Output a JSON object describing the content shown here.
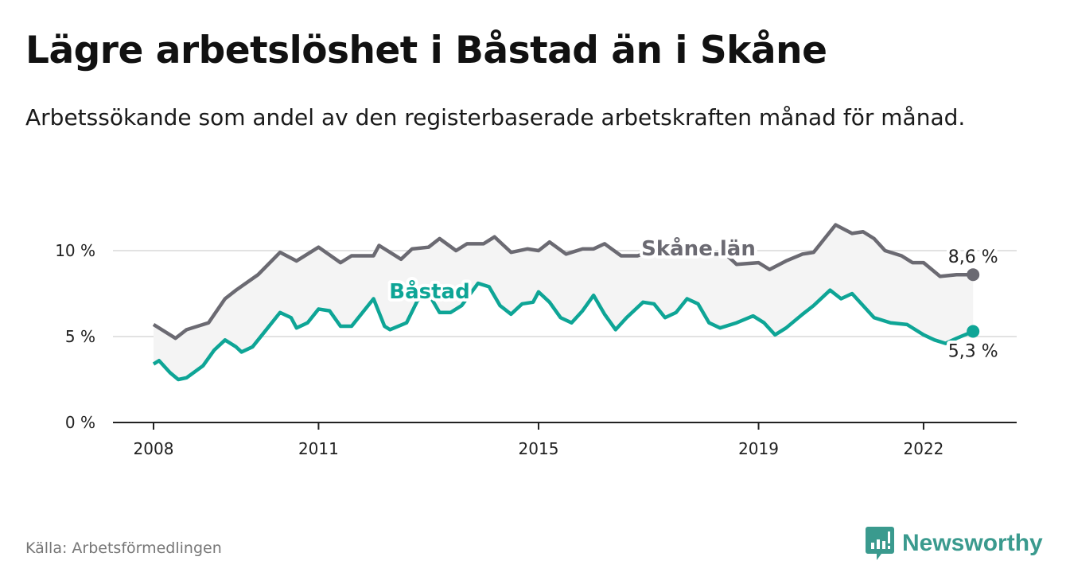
{
  "title": "Lägre arbetslöshet i Båstad än i Skåne",
  "subtitle": "Arbetssökande som andel av den registerbaserade arbetskraften månad för månad.",
  "source": "Källa: Arbetsförmedlingen",
  "logo": "Newsworthy",
  "colors": {
    "skane": "#6b6a72",
    "bastad": "#0ea596",
    "band": "#f4f4f4",
    "logo": "#3a9a8e"
  },
  "chart_data": {
    "type": "line",
    "xlabel": "",
    "ylabel": "",
    "xlim": [
      2008,
      2022.95
    ],
    "ylim": [
      0,
      12
    ],
    "grid": true,
    "x_ticks": [
      {
        "value": 2008,
        "label": "2008"
      },
      {
        "value": 2011,
        "label": "2011"
      },
      {
        "value": 2015,
        "label": "2015"
      },
      {
        "value": 2019,
        "label": "2019"
      },
      {
        "value": 2022,
        "label": "2022"
      }
    ],
    "y_ticks": [
      {
        "value": 0,
        "label": "0 %"
      },
      {
        "value": 5,
        "label": "5 %"
      },
      {
        "value": 10,
        "label": "10 %"
      }
    ],
    "series": [
      {
        "name": "Skåne län",
        "end_label": "8,6 %",
        "x": [
          2008.0,
          2008.4,
          2008.6,
          2009.0,
          2009.3,
          2009.5,
          2009.9,
          2010.3,
          2010.6,
          2010.8,
          2011.0,
          2011.4,
          2011.6,
          2012.0,
          2012.1,
          2012.5,
          2012.7,
          2013.0,
          2013.2,
          2013.5,
          2013.7,
          2014.0,
          2014.2,
          2014.5,
          2014.8,
          2015.0,
          2015.2,
          2015.5,
          2015.8,
          2016.0,
          2016.2,
          2016.5,
          2016.8,
          2017.0,
          2017.5,
          2018.0,
          2018.4,
          2018.6,
          2019.0,
          2019.2,
          2019.5,
          2019.8,
          2020.0,
          2020.2,
          2020.4,
          2020.7,
          2020.9,
          2021.1,
          2021.3,
          2021.6,
          2021.8,
          2022.0,
          2022.3,
          2022.6,
          2022.9
        ],
        "values": [
          5.7,
          4.9,
          5.4,
          5.8,
          7.2,
          7.7,
          8.6,
          9.9,
          9.4,
          9.8,
          10.2,
          9.3,
          9.7,
          9.7,
          10.3,
          9.5,
          10.1,
          10.2,
          10.7,
          10.0,
          10.4,
          10.4,
          10.8,
          9.9,
          10.1,
          10.0,
          10.5,
          9.8,
          10.1,
          10.1,
          10.4,
          9.7,
          9.7,
          9.9,
          9.9,
          9.8,
          9.8,
          9.2,
          9.3,
          8.9,
          9.4,
          9.8,
          9.9,
          10.7,
          11.5,
          11.0,
          11.1,
          10.7,
          10.0,
          9.7,
          9.3,
          9.3,
          8.5,
          8.6,
          8.6
        ]
      },
      {
        "name": "Båstad",
        "end_label": "5,3 %",
        "x": [
          2008.0,
          2008.1,
          2008.3,
          2008.45,
          2008.6,
          2008.9,
          2009.1,
          2009.3,
          2009.5,
          2009.6,
          2009.8,
          2010.1,
          2010.3,
          2010.5,
          2010.6,
          2010.8,
          2011.0,
          2011.2,
          2011.4,
          2011.6,
          2011.9,
          2012.0,
          2012.2,
          2012.3,
          2012.6,
          2012.8,
          2013.0,
          2013.2,
          2013.4,
          2013.6,
          2013.9,
          2014.1,
          2014.3,
          2014.5,
          2014.7,
          2014.9,
          2015.0,
          2015.2,
          2015.4,
          2015.6,
          2015.8,
          2016.0,
          2016.2,
          2016.4,
          2016.6,
          2016.9,
          2017.1,
          2017.3,
          2017.5,
          2017.7,
          2017.9,
          2018.1,
          2018.3,
          2018.6,
          2018.9,
          2019.1,
          2019.3,
          2019.5,
          2019.8,
          2020.0,
          2020.3,
          2020.5,
          2020.7,
          2020.9,
          2021.1,
          2021.4,
          2021.7,
          2022.0,
          2022.2,
          2022.4,
          2022.6,
          2022.9
        ],
        "values": [
          3.4,
          3.6,
          2.9,
          2.5,
          2.6,
          3.3,
          4.2,
          4.8,
          4.4,
          4.1,
          4.4,
          5.6,
          6.4,
          6.1,
          5.5,
          5.8,
          6.6,
          6.5,
          5.6,
          5.6,
          6.8,
          7.2,
          5.6,
          5.4,
          5.8,
          7.1,
          7.5,
          6.4,
          6.4,
          6.8,
          8.1,
          7.9,
          6.8,
          6.3,
          6.9,
          7.0,
          7.6,
          7.0,
          6.1,
          5.8,
          6.5,
          7.4,
          6.3,
          5.4,
          6.1,
          7.0,
          6.9,
          6.1,
          6.4,
          7.2,
          6.9,
          5.8,
          5.5,
          5.8,
          6.2,
          5.8,
          5.1,
          5.5,
          6.3,
          6.8,
          7.7,
          7.2,
          7.5,
          6.8,
          6.1,
          5.8,
          5.7,
          5.1,
          4.8,
          4.6,
          4.9,
          5.3
        ]
      }
    ]
  }
}
